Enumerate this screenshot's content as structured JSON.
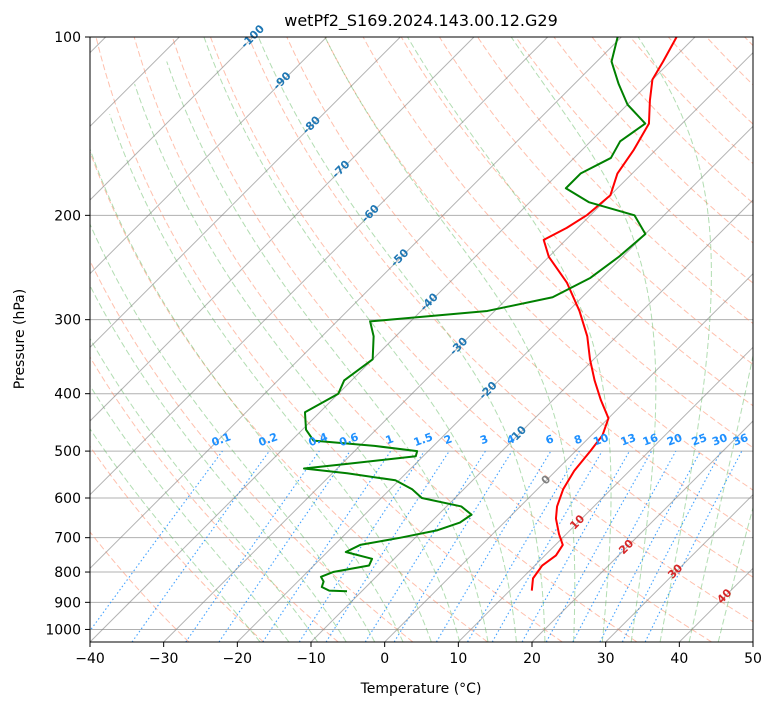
{
  "chart_data": {
    "type": "line",
    "title": "wetPf2_S169.2024.143.00.12.G29",
    "xlabel": "Temperature (°C)",
    "ylabel": "Pressure (hPa)",
    "xlim": [
      -40,
      50
    ],
    "ylim": [
      1050,
      100
    ],
    "y_scale": "log",
    "skew_deg": 45,
    "x_ticks": [
      -40,
      -30,
      -20,
      -10,
      0,
      10,
      20,
      30,
      40,
      50
    ],
    "x_tick_labels": [
      "−40",
      "−30",
      "−20",
      "−10",
      "0",
      "10",
      "20",
      "30",
      "40",
      "50"
    ],
    "y_ticks": [
      100,
      200,
      300,
      400,
      500,
      600,
      700,
      800,
      900,
      1000
    ],
    "y_tick_labels": [
      "100",
      "200",
      "300",
      "400",
      "500",
      "600",
      "700",
      "800",
      "900",
      "1000"
    ],
    "grid": true,
    "colors": {
      "temperature": "#ff0000",
      "dewpoint": "#008000",
      "isotherm": "#808080",
      "dry_adiabat": "#ff8c69",
      "moist_adiabat": "#66bb66",
      "mixing_ratio": "#1e90ff",
      "isotherm_label_cold": "#1f77b4",
      "isotherm_label_warm": "#d62728",
      "isotherm_label_zero": "#808080",
      "mixing_label": "#1e90ff"
    },
    "series": [
      {
        "name": "temperature",
        "points": [
          {
            "p": 860,
            "t": 13.0
          },
          {
            "p": 820,
            "t": 11.5
          },
          {
            "p": 780,
            "t": 11.0
          },
          {
            "p": 750,
            "t": 11.5
          },
          {
            "p": 720,
            "t": 11.0
          },
          {
            "p": 690,
            "t": 9.0
          },
          {
            "p": 650,
            "t": 6.5
          },
          {
            "p": 620,
            "t": 5.0
          },
          {
            "p": 580,
            "t": 3.5
          },
          {
            "p": 540,
            "t": 2.5
          },
          {
            "p": 500,
            "t": 2.0
          },
          {
            "p": 470,
            "t": 1.5
          },
          {
            "p": 440,
            "t": 0.0
          },
          {
            "p": 410,
            "t": -3.5
          },
          {
            "p": 380,
            "t": -7.0
          },
          {
            "p": 350,
            "t": -10.5
          },
          {
            "p": 320,
            "t": -14.0
          },
          {
            "p": 290,
            "t": -18.5
          },
          {
            "p": 260,
            "t": -24.0
          },
          {
            "p": 235,
            "t": -30.0
          },
          {
            "p": 220,
            "t": -33.0
          },
          {
            "p": 210,
            "t": -31.5
          },
          {
            "p": 200,
            "t": -30.5
          },
          {
            "p": 185,
            "t": -30.0
          },
          {
            "p": 170,
            "t": -32.0
          },
          {
            "p": 155,
            "t": -33.0
          },
          {
            "p": 140,
            "t": -34.5
          },
          {
            "p": 128,
            "t": -37.5
          },
          {
            "p": 118,
            "t": -40.0
          },
          {
            "p": 110,
            "t": -41.0
          },
          {
            "p": 100,
            "t": -42.5
          }
        ]
      },
      {
        "name": "dewpoint",
        "points": [
          {
            "p": 862,
            "t": -12.0
          },
          {
            "p": 860,
            "t": -14.5
          },
          {
            "p": 848,
            "t": -16.0
          },
          {
            "p": 830,
            "t": -16.5
          },
          {
            "p": 815,
            "t": -17.5
          },
          {
            "p": 800,
            "t": -16.5
          },
          {
            "p": 780,
            "t": -12.5
          },
          {
            "p": 760,
            "t": -13.0
          },
          {
            "p": 740,
            "t": -17.5
          },
          {
            "p": 720,
            "t": -16.5
          },
          {
            "p": 700,
            "t": -12.0
          },
          {
            "p": 680,
            "t": -8.0
          },
          {
            "p": 660,
            "t": -6.0
          },
          {
            "p": 640,
            "t": -5.5
          },
          {
            "p": 620,
            "t": -8.0
          },
          {
            "p": 600,
            "t": -14.5
          },
          {
            "p": 580,
            "t": -17.0
          },
          {
            "p": 560,
            "t": -20.5
          },
          {
            "p": 545,
            "t": -28.0
          },
          {
            "p": 535,
            "t": -34.5
          },
          {
            "p": 525,
            "t": -29.0
          },
          {
            "p": 510,
            "t": -21.0
          },
          {
            "p": 500,
            "t": -21.5
          },
          {
            "p": 490,
            "t": -28.0
          },
          {
            "p": 480,
            "t": -37.0
          },
          {
            "p": 460,
            "t": -39.5
          },
          {
            "p": 430,
            "t": -42.0
          },
          {
            "p": 400,
            "t": -40.0
          },
          {
            "p": 380,
            "t": -41.0
          },
          {
            "p": 350,
            "t": -40.0
          },
          {
            "p": 320,
            "t": -43.0
          },
          {
            "p": 302,
            "t": -45.5
          },
          {
            "p": 300,
            "t": -43.0
          },
          {
            "p": 290,
            "t": -31.0
          },
          {
            "p": 275,
            "t": -24.0
          },
          {
            "p": 255,
            "t": -21.5
          },
          {
            "p": 235,
            "t": -20.5
          },
          {
            "p": 215,
            "t": -20.0
          },
          {
            "p": 200,
            "t": -24.0
          },
          {
            "p": 190,
            "t": -32.0
          },
          {
            "p": 180,
            "t": -37.0
          },
          {
            "p": 170,
            "t": -37.0
          },
          {
            "p": 160,
            "t": -35.0
          },
          {
            "p": 150,
            "t": -36.0
          },
          {
            "p": 140,
            "t": -35.0
          },
          {
            "p": 130,
            "t": -40.0
          },
          {
            "p": 120,
            "t": -44.0
          },
          {
            "p": 110,
            "t": -48.0
          },
          {
            "p": 100,
            "t": -50.5
          }
        ]
      }
    ],
    "isotherm_labels": [
      {
        "label": "-100",
        "t": -100
      },
      {
        "label": "-90",
        "t": -90
      },
      {
        "label": "-80",
        "t": -80
      },
      {
        "label": "-70",
        "t": -70
      },
      {
        "label": "-60",
        "t": -60
      },
      {
        "label": "-50",
        "t": -50
      },
      {
        "label": "-40",
        "t": -40
      },
      {
        "label": "-30",
        "t": -30
      },
      {
        "label": "-20",
        "t": -20
      },
      {
        "label": "-10",
        "t": -10
      },
      {
        "label": "0",
        "t": 0
      },
      {
        "label": "10",
        "t": 10
      },
      {
        "label": "20",
        "t": 20
      },
      {
        "label": "30",
        "t": 30
      },
      {
        "label": "40",
        "t": 40
      }
    ],
    "mixing_ratio_labels": [
      "0.1",
      "0.2",
      "0.4",
      "0.6",
      "1",
      "1.5",
      "2",
      "3",
      "4",
      "6",
      "8",
      "10",
      "13",
      "16",
      "20",
      "25",
      "30",
      "36"
    ]
  }
}
